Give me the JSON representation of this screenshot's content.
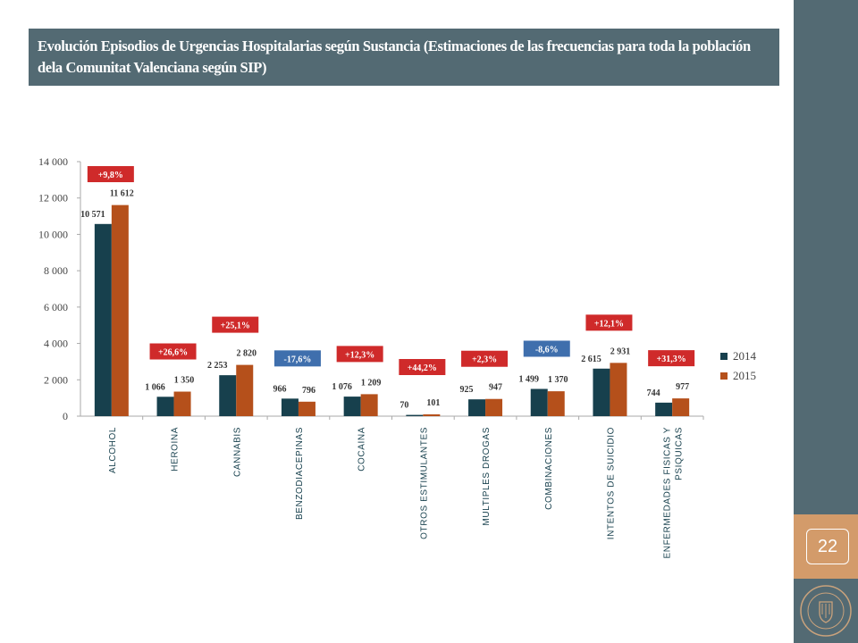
{
  "slide": {
    "title": "Evolución Episodios de Urgencias Hospitalarias según Sustancia (Estimaciones de las frecuencias para toda la población dela Comunitat Valenciana según SIP)",
    "page_number": "22"
  },
  "colors": {
    "title_bg": "#536a73",
    "sidebar": "#536a73",
    "accent": "#d39b6a",
    "series_2014": "#17404d",
    "series_2015": "#b5501b",
    "badge_positive": "#cf2a2a",
    "badge_negative": "#3f6fad"
  },
  "chart_data": {
    "type": "bar",
    "title": "",
    "xlabel": "",
    "ylabel": "",
    "ylim": [
      0,
      14000
    ],
    "yticks": [
      "0",
      "2 000",
      "4 000",
      "6 000",
      "8 000",
      "10 000",
      "12 000",
      "14 000"
    ],
    "grid": false,
    "legend_position": "right",
    "categories": [
      "ALCOHOL",
      "HEROINA",
      "CANNABIS",
      "BENZODIACEPINAS",
      "COCAINA",
      "OTROS ESTIMULANTES",
      "MULTIPLES DROGAS",
      "COMBINACIONES",
      "INTENTOS DE SUICIDIO",
      "ENFERMEDADES FISICAS Y PSIQUICAS"
    ],
    "series": [
      {
        "name": "2014",
        "values": [
          10571,
          1066,
          2253,
          966,
          1076,
          70,
          925,
          1499,
          2615,
          744
        ],
        "labels": [
          "10 571",
          "1 066",
          "2 253",
          "966",
          "1 076",
          "70",
          "925",
          "1 499",
          "2 615",
          "744"
        ]
      },
      {
        "name": "2015",
        "values": [
          11612,
          1350,
          2820,
          796,
          1209,
          101,
          947,
          1370,
          2931,
          977
        ],
        "labels": [
          "11 612",
          "1 350",
          "2 820",
          "796",
          "1 209",
          "101",
          "947",
          "1 370",
          "2 931",
          "977"
        ]
      }
    ],
    "changes": [
      "+9,8%",
      "+26,6%",
      "+25,1%",
      "-17,6%",
      "+12,3%",
      "+44,2%",
      "+2,3%",
      "-8,6%",
      "+12,1%",
      "+31,3%"
    ]
  }
}
